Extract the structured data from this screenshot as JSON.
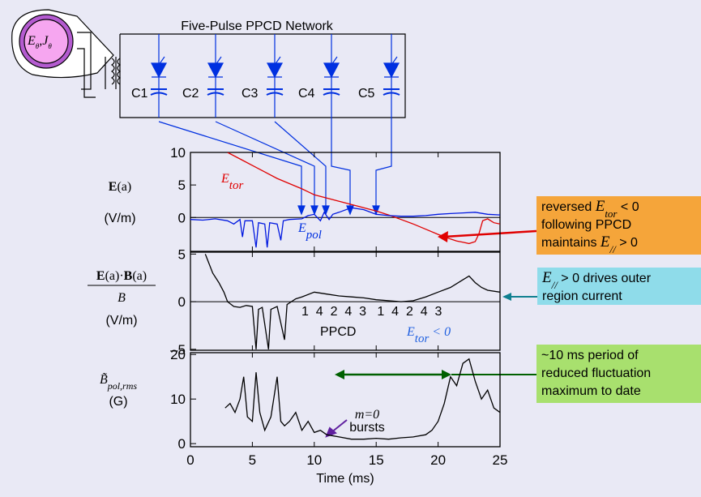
{
  "circuit": {
    "title": "Five-Pulse PPCD Network",
    "torus_label": [
      "E",
      "θ",
      ",J",
      "θ"
    ],
    "capacitors": [
      "C1",
      "C2",
      "C3",
      "C4",
      "C5"
    ]
  },
  "panel_labels": [
    {
      "top": [
        "E",
        "(a)"
      ],
      "unit": "(V/m)"
    },
    {
      "top": [
        "E",
        "(a)·",
        "B",
        "(a)"
      ],
      "denominator": "B",
      "unit": "(V/m)"
    },
    {
      "top": [
        "B̃",
        "pol,rms"
      ],
      "unit": "(G)"
    }
  ],
  "annotations": {
    "etor": [
      "E",
      "tor"
    ],
    "epol": [
      "E",
      "pol"
    ],
    "sequence": "1  4  2  4  3   1  4  2  4  3",
    "ppcd": "PPCD",
    "etor_neg": [
      "E",
      "tor",
      " < 0"
    ],
    "m0": "m=0",
    "bursts": "bursts"
  },
  "callouts": [
    {
      "lines": [
        [
          "reversed ",
          "E",
          "tor",
          " < 0"
        ],
        [
          "following PPCD"
        ],
        [
          "maintains ",
          "E",
          "//",
          " > 0"
        ]
      ],
      "color": "#f5a53a"
    },
    {
      "lines": [
        [
          "E",
          "//",
          " > 0 drives outer"
        ],
        [
          "region current"
        ]
      ],
      "color": "#8fdcea"
    },
    {
      "lines": [
        [
          "~10 ms period of"
        ],
        [
          "reduced fluctuation"
        ],
        [
          "maximum to date"
        ]
      ],
      "color": "#a8e06e"
    }
  ],
  "chart_data": [
    {
      "type": "line",
      "xlim": [
        0,
        25
      ],
      "ylim": [
        -5.2,
        10
      ],
      "yticks": [
        10,
        5,
        0
      ],
      "zero_line": true,
      "series": [
        {
          "color": "#e00000",
          "x": [
            3,
            4,
            5,
            6,
            7,
            8,
            9,
            10,
            11,
            12,
            13,
            14,
            15,
            16,
            17,
            18,
            19,
            20,
            21,
            21.5,
            22,
            22.5,
            23,
            23.3,
            23.6,
            24,
            24.5,
            25
          ],
          "values": [
            10,
            9,
            8,
            7,
            6,
            5.2,
            4.4,
            3.5,
            3,
            2.5,
            2,
            1.5,
            1,
            0.4,
            -0.3,
            -1,
            -1.8,
            -2.6,
            -3.3,
            -3.6,
            -3.8,
            -4,
            -3.7,
            -2.5,
            -0.5,
            -0.2,
            -0.8,
            -1
          ]
        },
        {
          "color": "#0018e0",
          "x": [
            0,
            1,
            2,
            3,
            3.5,
            4,
            4.2,
            4.4,
            5,
            5.3,
            5.5,
            6,
            6.2,
            6.4,
            7,
            7.3,
            7.5,
            8,
            9,
            9.5,
            10,
            10.5,
            10.8,
            11.2,
            11.5,
            12,
            13,
            14,
            15,
            16,
            17,
            18,
            19,
            20,
            21,
            22,
            23,
            24,
            25
          ],
          "values": [
            -0.3,
            -0.4,
            -0.2,
            -0.5,
            -1,
            -0.3,
            -3,
            -0.5,
            -0.5,
            -4.6,
            -0.8,
            -1,
            -4.6,
            -0.8,
            -1,
            -3.5,
            -0.5,
            -0.3,
            -0.2,
            0.3,
            0.5,
            -0.5,
            0.8,
            -0.3,
            0.5,
            0.8,
            1.5,
            1.2,
            0.5,
            0.3,
            0.2,
            0.2,
            0.3,
            0.5,
            0.6,
            0.7,
            0.8,
            0.5,
            0.4
          ]
        }
      ]
    },
    {
      "type": "line",
      "xlim": [
        0,
        25
      ],
      "ylim": [
        -5.1,
        5.2
      ],
      "yticks": [
        5,
        0,
        {
          "value": -5,
          "label": "–5"
        }
      ],
      "zero_line": true,
      "series": [
        {
          "color": "#000000",
          "x": [
            1.2,
            1.8,
            2.3,
            2.7,
            3,
            3.5,
            4,
            4.5,
            5,
            5.3,
            5.5,
            5.8,
            6.3,
            6.5,
            7,
            7.6,
            7.8,
            8.5,
            9,
            10,
            11,
            12,
            13,
            14,
            15,
            16,
            17,
            18,
            19,
            20,
            21,
            22,
            22.5,
            23,
            23.5,
            24,
            25
          ],
          "values": [
            5,
            3,
            2,
            1,
            0,
            -0.5,
            -0.6,
            -0.4,
            -0.5,
            -5,
            -0.8,
            -0.6,
            -5,
            -0.8,
            -0.5,
            -4,
            -0.3,
            0.3,
            0.5,
            1,
            0.8,
            0.6,
            0.5,
            0.4,
            0.2,
            0.1,
            0,
            0.1,
            0.5,
            1,
            1.5,
            2.3,
            2.7,
            2,
            1.5,
            1.2,
            1
          ]
        }
      ]
    },
    {
      "type": "line",
      "xlim": [
        0,
        25
      ],
      "ylim": [
        -0.7,
        20.4
      ],
      "yticks": [
        20,
        10,
        0
      ],
      "xticks": [
        0,
        5,
        10,
        15,
        20,
        25
      ],
      "xlabel": "Time (ms)",
      "series": [
        {
          "color": "#000000",
          "x": [
            2.8,
            3.2,
            3.6,
            4,
            4.3,
            4.6,
            5,
            5.3,
            5.6,
            6,
            6.5,
            7,
            7.3,
            7.6,
            8,
            8.5,
            9,
            9.5,
            10,
            10.5,
            11,
            12,
            13,
            14,
            15,
            16,
            17,
            18,
            19,
            19.5,
            20,
            20.5,
            21,
            21.5,
            22,
            22.5,
            23,
            23.5,
            24,
            24.5,
            25
          ],
          "values": [
            8,
            9,
            7,
            10,
            15,
            6,
            5,
            16,
            7,
            3,
            6,
            15,
            5,
            4,
            5,
            7,
            3,
            5,
            2.5,
            3,
            2,
            1.5,
            1,
            1,
            1.2,
            1,
            1.3,
            1.5,
            2,
            3,
            5,
            9,
            15,
            13,
            18,
            19,
            14,
            10,
            12,
            8,
            7
          ]
        }
      ]
    }
  ]
}
